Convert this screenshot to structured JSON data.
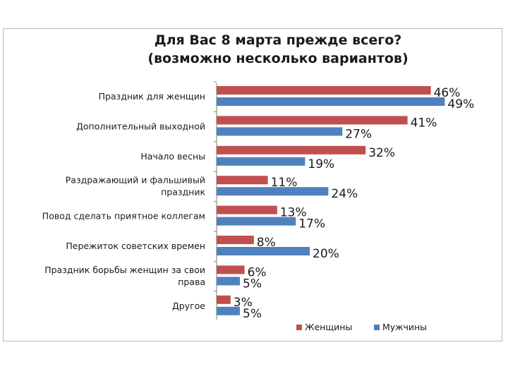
{
  "chart_data": {
    "type": "bar",
    "orientation": "horizontal",
    "title": "Для Вас 8 марта прежде всего?",
    "subtitle": "(возможно несколько вариантов)",
    "categories": [
      "Праздник для женщин",
      "Дополнительный выходной",
      "Начало весны",
      "Раздражающий и фальшивый праздник",
      "Повод сделать приятное коллегам",
      "Пережиток советских времен",
      "Праздник борьбы женщин за свои права",
      "Другое"
    ],
    "category_lines": [
      [
        "Праздник для женщин"
      ],
      [
        "Дополнительный выходной"
      ],
      [
        "Начало весны"
      ],
      [
        "Раздражающий и фальшивый",
        "праздник"
      ],
      [
        "Повод сделать приятное коллегам"
      ],
      [
        "Пережиток советских времен"
      ],
      [
        "Праздник борьбы женщин за свои",
        "права"
      ],
      [
        "Другое"
      ]
    ],
    "series": [
      {
        "name": "Женщины",
        "color": "#c0504d",
        "values": [
          46,
          41,
          32,
          11,
          13,
          8,
          6,
          3
        ]
      },
      {
        "name": "Мужчины",
        "color": "#4f81bd",
        "values": [
          49,
          27,
          19,
          24,
          17,
          20,
          5,
          5
        ]
      }
    ],
    "value_suffix": "%",
    "xlim": [
      0,
      50
    ],
    "legend_position": "bottom-right",
    "grid": false
  }
}
